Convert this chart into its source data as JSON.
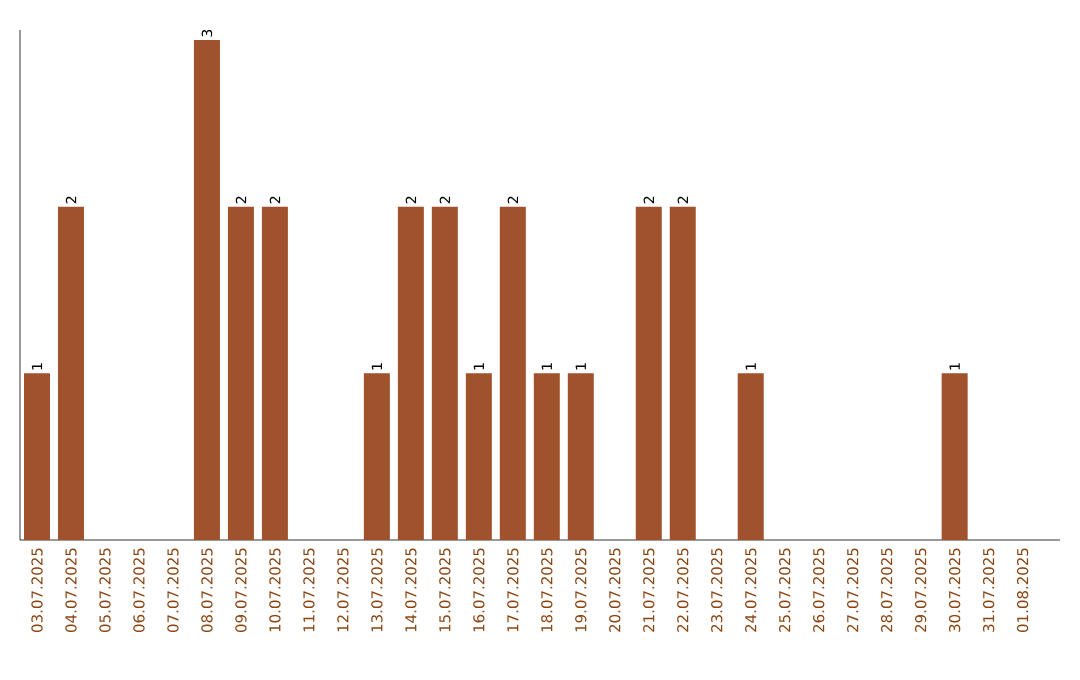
{
  "chart_data": {
    "type": "bar",
    "categories": [
      "03.07.2025",
      "04.07.2025",
      "05.07.2025",
      "06.07.2025",
      "07.07.2025",
      "08.07.2025",
      "09.07.2025",
      "10.07.2025",
      "11.07.2025",
      "12.07.2025",
      "13.07.2025",
      "14.07.2025",
      "15.07.2025",
      "16.07.2025",
      "17.07.2025",
      "18.07.2025",
      "19.07.2025",
      "20.07.2025",
      "21.07.2025",
      "22.07.2025",
      "23.07.2025",
      "24.07.2025",
      "25.07.2025",
      "26.07.2025",
      "27.07.2025",
      "28.07.2025",
      "29.07.2025",
      "30.07.2025",
      "31.07.2025",
      "01.08.2025"
    ],
    "values": [
      1,
      2,
      0,
      0,
      0,
      3,
      2,
      2,
      0,
      0,
      1,
      2,
      2,
      1,
      2,
      1,
      1,
      0,
      2,
      2,
      0,
      1,
      0,
      0,
      0,
      0,
      0,
      1,
      0,
      0
    ],
    "value_labels": [
      "1",
      "2",
      null,
      null,
      null,
      "3",
      "2",
      "2",
      null,
      null,
      "1",
      "2",
      "2",
      "1",
      "2",
      "1",
      "1",
      null,
      "2",
      "2",
      null,
      "1",
      null,
      null,
      null,
      null,
      null,
      "1",
      null,
      null
    ],
    "color": "#a0522d",
    "tick_labels": "x"
  }
}
